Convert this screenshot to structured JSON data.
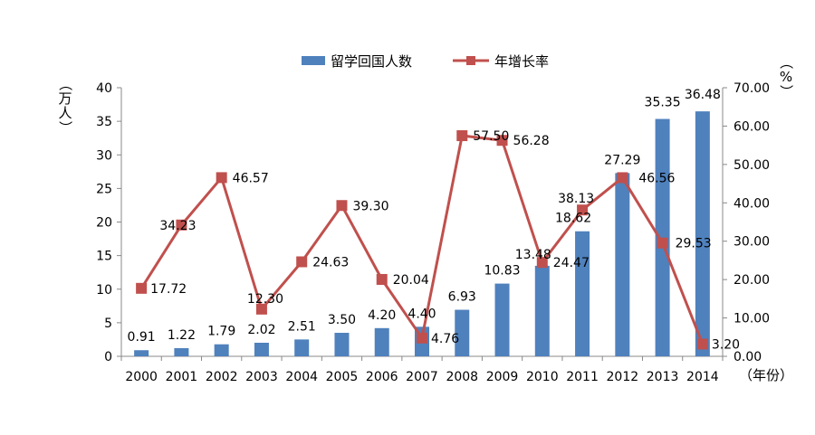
{
  "chart_data": {
    "type": "bar+line",
    "categories": [
      "2000",
      "2001",
      "2002",
      "2003",
      "2004",
      "2005",
      "2006",
      "2007",
      "2008",
      "2009",
      "2010",
      "2011",
      "2012",
      "2013",
      "2014"
    ],
    "series": [
      {
        "name": "留学回国人数",
        "type": "bar",
        "axis": "left",
        "color": "#4F81BD",
        "values": [
          0.91,
          1.22,
          1.79,
          2.02,
          2.51,
          3.5,
          4.2,
          4.4,
          6.93,
          10.83,
          13.48,
          18.62,
          27.29,
          35.35,
          36.48
        ],
        "labels": [
          "0.91",
          "1.22",
          "1.79",
          "2.02",
          "2.51",
          "3.50",
          "4.20",
          "4.40",
          "6.93",
          "10.83",
          "13.48",
          "18.62",
          "27.29",
          "35.35",
          "36.48"
        ]
      },
      {
        "name": "年增长率",
        "type": "line",
        "axis": "right",
        "color": "#C0504D",
        "values": [
          17.72,
          34.23,
          46.57,
          12.3,
          24.63,
          39.3,
          20.04,
          4.76,
          57.5,
          56.28,
          24.47,
          38.13,
          46.56,
          29.53,
          3.2
        ],
        "labels": [
          "17.72",
          "34.23",
          "46.57",
          "12.30",
          "24.63",
          "39.30",
          "20.04",
          "4.76",
          "57.50",
          "56.28",
          "24.47",
          "38.13",
          "46.56",
          "29.53",
          "3.20"
        ]
      }
    ],
    "y_left": {
      "unit": "（万人）",
      "ylim": [
        0,
        40
      ],
      "ticks": [
        "0",
        "5",
        "10",
        "15",
        "20",
        "25",
        "30",
        "35",
        "40"
      ]
    },
    "y_right": {
      "unit": "（%）",
      "ylim": [
        0,
        70
      ],
      "ticks": [
        "0.00",
        "10.00",
        "20.00",
        "30.00",
        "40.00",
        "50.00",
        "60.00",
        "70.00"
      ]
    },
    "x_unit": "（年份）",
    "legend_position": "top",
    "grid": false
  }
}
